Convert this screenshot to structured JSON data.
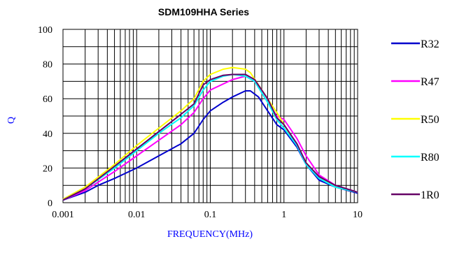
{
  "chart_data": {
    "type": "line",
    "title": "SDM109HHA Series",
    "xlabel": "FREQUENCY(MHz)",
    "ylabel": "Q",
    "xscale": "log",
    "xlim": [
      0.001,
      10
    ],
    "ylim": [
      0,
      100
    ],
    "x_ticks": [
      "0.001",
      "0.01",
      "0.1",
      "1",
      "10"
    ],
    "y_ticks": [
      "0",
      "20",
      "40",
      "60",
      "80",
      "100"
    ],
    "grid": true,
    "legend_position": "right",
    "series": [
      {
        "name": "R32",
        "color": "#0000cc",
        "points": [
          [
            0.001,
            1.5
          ],
          [
            0.002,
            6
          ],
          [
            0.003,
            10
          ],
          [
            0.005,
            14
          ],
          [
            0.01,
            20
          ],
          [
            0.02,
            27
          ],
          [
            0.04,
            34
          ],
          [
            0.06,
            40
          ],
          [
            0.08,
            48
          ],
          [
            0.1,
            53
          ],
          [
            0.15,
            58
          ],
          [
            0.2,
            61
          ],
          [
            0.3,
            64.5
          ],
          [
            0.35,
            64.5
          ],
          [
            0.45,
            61
          ],
          [
            0.6,
            53
          ],
          [
            0.8,
            45
          ],
          [
            1.0,
            42
          ],
          [
            1.5,
            32
          ],
          [
            2,
            22
          ],
          [
            3,
            13
          ],
          [
            5,
            9
          ],
          [
            10,
            5.5
          ]
        ]
      },
      {
        "name": "R47",
        "color": "#ff00ff",
        "points": [
          [
            0.001,
            1.5
          ],
          [
            0.002,
            7
          ],
          [
            0.005,
            18
          ],
          [
            0.01,
            27
          ],
          [
            0.02,
            36
          ],
          [
            0.04,
            45
          ],
          [
            0.06,
            52
          ],
          [
            0.08,
            60
          ],
          [
            0.1,
            65
          ],
          [
            0.2,
            71
          ],
          [
            0.3,
            73
          ],
          [
            0.4,
            70
          ],
          [
            0.6,
            58
          ],
          [
            0.8,
            50
          ],
          [
            1.0,
            48
          ],
          [
            1.5,
            37
          ],
          [
            2,
            27
          ],
          [
            3,
            16
          ],
          [
            5,
            10
          ],
          [
            10,
            6
          ]
        ]
      },
      {
        "name": "R50",
        "color": "#ffff00",
        "points": [
          [
            0.001,
            2
          ],
          [
            0.002,
            9
          ],
          [
            0.005,
            22
          ],
          [
            0.01,
            33
          ],
          [
            0.02,
            43
          ],
          [
            0.04,
            53
          ],
          [
            0.06,
            60
          ],
          [
            0.08,
            70
          ],
          [
            0.1,
            74
          ],
          [
            0.15,
            77
          ],
          [
            0.2,
            78
          ],
          [
            0.3,
            77
          ],
          [
            0.35,
            75
          ],
          [
            0.5,
            65
          ],
          [
            0.8,
            52
          ],
          [
            1.0,
            45
          ],
          [
            1.5,
            33
          ],
          [
            2,
            23
          ],
          [
            3,
            15
          ],
          [
            5,
            9
          ],
          [
            10,
            6
          ]
        ]
      },
      {
        "name": "R80",
        "color": "#00ffff",
        "points": [
          [
            0.001,
            1.5
          ],
          [
            0.002,
            8
          ],
          [
            0.005,
            20
          ],
          [
            0.01,
            30
          ],
          [
            0.02,
            40
          ],
          [
            0.04,
            49
          ],
          [
            0.06,
            56
          ],
          [
            0.08,
            65
          ],
          [
            0.1,
            70
          ],
          [
            0.15,
            73
          ],
          [
            0.2,
            74
          ],
          [
            0.3,
            73
          ],
          [
            0.4,
            70
          ],
          [
            0.6,
            58
          ],
          [
            0.8,
            48
          ],
          [
            1.0,
            43
          ],
          [
            1.5,
            33
          ],
          [
            2,
            22
          ],
          [
            3,
            14
          ],
          [
            5,
            9
          ],
          [
            10,
            6
          ]
        ]
      },
      {
        "name": "1R0",
        "color": "#660066",
        "points": [
          [
            0.001,
            1.5
          ],
          [
            0.002,
            8
          ],
          [
            0.005,
            21
          ],
          [
            0.01,
            31
          ],
          [
            0.02,
            41
          ],
          [
            0.04,
            51
          ],
          [
            0.06,
            57
          ],
          [
            0.08,
            68
          ],
          [
            0.1,
            71
          ],
          [
            0.15,
            73.5
          ],
          [
            0.2,
            74
          ],
          [
            0.3,
            74
          ],
          [
            0.4,
            71
          ],
          [
            0.6,
            60
          ],
          [
            0.8,
            49
          ],
          [
            1.0,
            45
          ],
          [
            1.5,
            34
          ],
          [
            2,
            23
          ],
          [
            3,
            15
          ],
          [
            5,
            10
          ],
          [
            10,
            6
          ]
        ]
      }
    ]
  }
}
